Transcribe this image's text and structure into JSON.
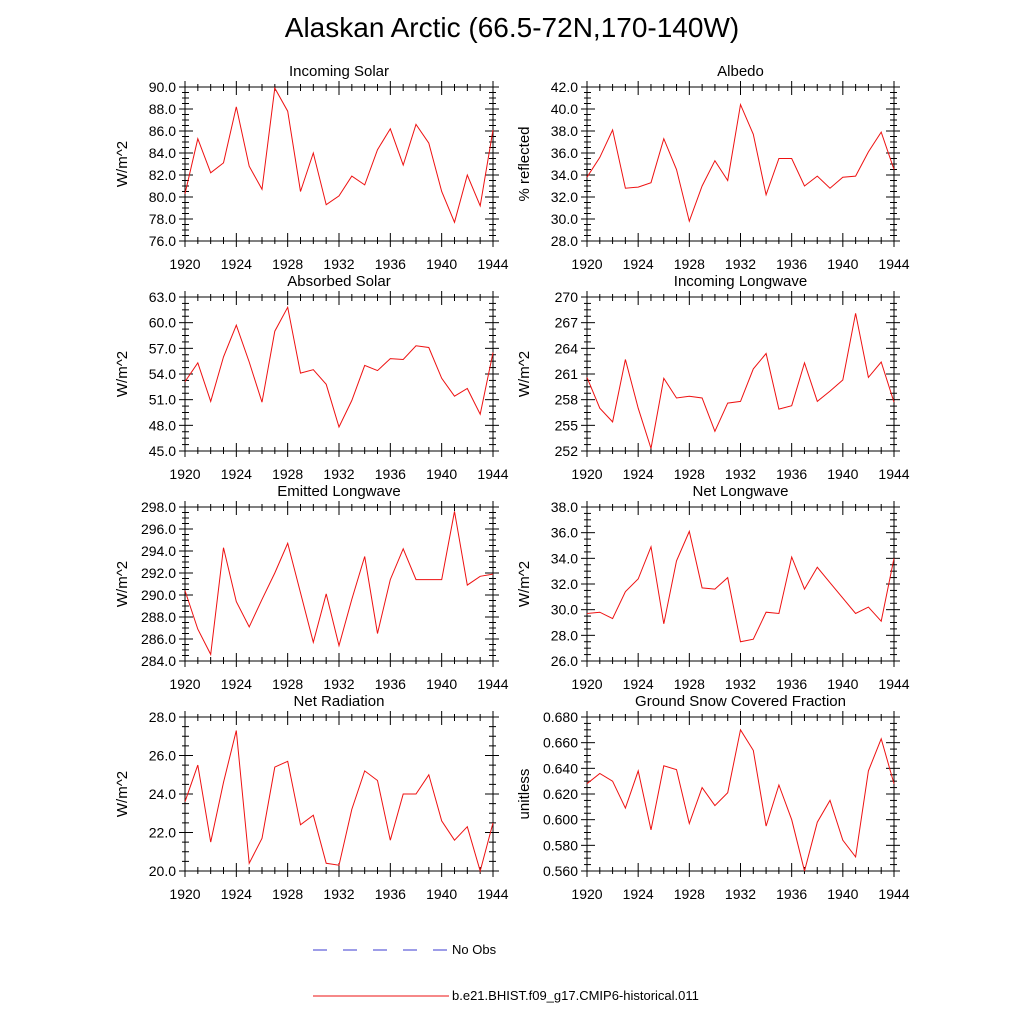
{
  "title": "Alaskan Arctic (66.5-72N,170-140W)",
  "legend": [
    {
      "label": "No Obs",
      "color": "#3b3bd1",
      "style": "dashed"
    },
    {
      "label": "b.e21.BHIST.f09_g17.CMIP6-historical.011",
      "color": "#ee1111",
      "style": "solid"
    }
  ],
  "chart_data": [
    {
      "type": "line",
      "title": "Incoming Solar",
      "ylabel": "W/m^2",
      "xlim": [
        1920,
        1944
      ],
      "ylim": [
        76,
        90
      ],
      "xticks": [
        "1920",
        "1924",
        "1928",
        "1932",
        "1936",
        "1940",
        "1944"
      ],
      "yticks": [
        "76.0",
        "78.0",
        "80.0",
        "82.0",
        "84.0",
        "86.0",
        "88.0",
        "90.0"
      ],
      "x": [
        1920,
        1921,
        1922,
        1923,
        1924,
        1925,
        1926,
        1927,
        1928,
        1929,
        1930,
        1931,
        1932,
        1933,
        1934,
        1935,
        1936,
        1937,
        1938,
        1939,
        1940,
        1941,
        1942,
        1943,
        1944
      ],
      "values": [
        80.3,
        85.3,
        82.2,
        83.1,
        88.2,
        82.8,
        80.7,
        89.9,
        87.8,
        80.5,
        84.0,
        79.3,
        80.1,
        81.9,
        81.1,
        84.3,
        86.2,
        82.9,
        86.6,
        84.9,
        80.5,
        77.7,
        82.0,
        79.2,
        86.1
      ]
    },
    {
      "type": "line",
      "title": "Albedo",
      "ylabel": "% reflected",
      "xlim": [
        1920,
        1944
      ],
      "ylim": [
        28,
        42
      ],
      "xticks": [
        "1920",
        "1924",
        "1928",
        "1932",
        "1936",
        "1940",
        "1944"
      ],
      "yticks": [
        "28.0",
        "30.0",
        "32.0",
        "34.0",
        "36.0",
        "38.0",
        "40.0",
        "42.0"
      ],
      "x": [
        1920,
        1921,
        1922,
        1923,
        1924,
        1925,
        1926,
        1927,
        1928,
        1929,
        1930,
        1931,
        1932,
        1933,
        1934,
        1935,
        1936,
        1937,
        1938,
        1939,
        1940,
        1941,
        1942,
        1943,
        1944
      ],
      "values": [
        33.8,
        35.6,
        38.1,
        32.8,
        32.9,
        33.3,
        37.3,
        34.5,
        29.8,
        33.0,
        35.3,
        33.5,
        40.4,
        37.7,
        32.2,
        35.5,
        35.5,
        33.0,
        33.9,
        32.8,
        33.8,
        33.9,
        36.1,
        37.9,
        34.5
      ]
    },
    {
      "type": "line",
      "title": "Absorbed Solar",
      "ylabel": "W/m^2",
      "xlim": [
        1920,
        1944
      ],
      "ylim": [
        45,
        63
      ],
      "xticks": [
        "1920",
        "1924",
        "1928",
        "1932",
        "1936",
        "1940",
        "1944"
      ],
      "yticks": [
        "45.0",
        "48.0",
        "51.0",
        "54.0",
        "57.0",
        "60.0",
        "63.0"
      ],
      "x": [
        1920,
        1921,
        1922,
        1923,
        1924,
        1925,
        1926,
        1927,
        1928,
        1929,
        1930,
        1931,
        1932,
        1933,
        1934,
        1935,
        1936,
        1937,
        1938,
        1939,
        1940,
        1941,
        1942,
        1943,
        1944
      ],
      "values": [
        53.1,
        55.3,
        50.8,
        56.0,
        59.7,
        55.4,
        50.7,
        59.0,
        61.8,
        54.1,
        54.5,
        52.8,
        47.8,
        50.9,
        55.0,
        54.4,
        55.8,
        55.7,
        57.3,
        57.1,
        53.5,
        51.4,
        52.3,
        49.3,
        56.5
      ]
    },
    {
      "type": "line",
      "title": "Incoming Longwave",
      "ylabel": "W/m^2",
      "xlim": [
        1920,
        1944
      ],
      "ylim": [
        252,
        270
      ],
      "xticks": [
        "1920",
        "1924",
        "1928",
        "1932",
        "1936",
        "1940",
        "1944"
      ],
      "yticks": [
        "252",
        "255",
        "258",
        "261",
        "264",
        "267",
        "270"
      ],
      "x": [
        1920,
        1921,
        1922,
        1923,
        1924,
        1925,
        1926,
        1927,
        1928,
        1929,
        1930,
        1931,
        1932,
        1933,
        1934,
        1935,
        1936,
        1937,
        1938,
        1939,
        1940,
        1941,
        1942,
        1943,
        1944
      ],
      "values": [
        260.6,
        257.0,
        255.4,
        262.7,
        257.0,
        252.3,
        260.5,
        258.2,
        258.4,
        258.2,
        254.3,
        257.6,
        257.8,
        261.6,
        263.4,
        256.9,
        257.3,
        262.3,
        257.8,
        259.0,
        260.3,
        268.1,
        260.6,
        262.4,
        257.7
      ]
    },
    {
      "type": "line",
      "title": "Emitted Longwave",
      "ylabel": "W/m^2",
      "xlim": [
        1920,
        1944
      ],
      "ylim": [
        284,
        298
      ],
      "xticks": [
        "1920",
        "1924",
        "1928",
        "1932",
        "1936",
        "1940",
        "1944"
      ],
      "yticks": [
        "284.0",
        "286.0",
        "288.0",
        "290.0",
        "292.0",
        "294.0",
        "296.0",
        "298.0"
      ],
      "x": [
        1920,
        1921,
        1922,
        1923,
        1924,
        1925,
        1926,
        1927,
        1928,
        1929,
        1930,
        1931,
        1932,
        1933,
        1934,
        1935,
        1936,
        1937,
        1938,
        1939,
        1940,
        1941,
        1942,
        1943,
        1944
      ],
      "values": [
        290.4,
        286.9,
        284.6,
        294.3,
        289.4,
        287.1,
        289.6,
        292.0,
        294.7,
        290.2,
        285.7,
        290.1,
        285.4,
        289.6,
        293.5,
        286.5,
        291.4,
        294.2,
        291.4,
        291.4,
        291.4,
        297.6,
        290.9,
        291.7,
        291.9
      ]
    },
    {
      "type": "line",
      "title": "Net Longwave",
      "ylabel": "W/m^2",
      "xlim": [
        1920,
        1944
      ],
      "ylim": [
        26,
        38
      ],
      "xticks": [
        "1920",
        "1924",
        "1928",
        "1932",
        "1936",
        "1940",
        "1944"
      ],
      "yticks": [
        "26.0",
        "28.0",
        "30.0",
        "32.0",
        "34.0",
        "36.0",
        "38.0"
      ],
      "x": [
        1920,
        1921,
        1922,
        1923,
        1924,
        1925,
        1926,
        1927,
        1928,
        1929,
        1930,
        1931,
        1932,
        1933,
        1934,
        1935,
        1936,
        1937,
        1938,
        1939,
        1940,
        1941,
        1942,
        1943,
        1944
      ],
      "values": [
        29.7,
        29.8,
        29.3,
        31.4,
        32.4,
        34.9,
        28.9,
        33.8,
        36.1,
        31.7,
        31.6,
        32.5,
        27.5,
        27.7,
        29.8,
        29.7,
        34.1,
        31.6,
        33.3,
        32.1,
        30.9,
        29.7,
        30.2,
        29.1,
        34.0
      ]
    },
    {
      "type": "line",
      "title": "Net Radiation",
      "ylabel": "W/m^2",
      "xlim": [
        1920,
        1944
      ],
      "ylim": [
        20,
        28
      ],
      "xticks": [
        "1920",
        "1924",
        "1928",
        "1932",
        "1936",
        "1940",
        "1944"
      ],
      "yticks": [
        "20.0",
        "22.0",
        "24.0",
        "26.0",
        "28.0"
      ],
      "x": [
        1920,
        1921,
        1922,
        1923,
        1924,
        1925,
        1926,
        1927,
        1928,
        1929,
        1930,
        1931,
        1932,
        1933,
        1934,
        1935,
        1936,
        1937,
        1938,
        1939,
        1940,
        1941,
        1942,
        1943,
        1944
      ],
      "values": [
        23.6,
        25.5,
        21.5,
        24.6,
        27.3,
        20.4,
        21.7,
        25.4,
        25.7,
        22.4,
        22.9,
        20.4,
        20.3,
        23.2,
        25.2,
        24.7,
        21.6,
        24.0,
        24.0,
        25.0,
        22.6,
        21.6,
        22.3,
        20.0,
        22.5
      ]
    },
    {
      "type": "line",
      "title": "Ground Snow Covered Fraction",
      "ylabel": "unitless",
      "xlim": [
        1920,
        1944
      ],
      "ylim": [
        0.56,
        0.68
      ],
      "xticks": [
        "1920",
        "1924",
        "1928",
        "1932",
        "1936",
        "1940",
        "1944"
      ],
      "yticks": [
        "0.560",
        "0.580",
        "0.600",
        "0.620",
        "0.640",
        "0.660",
        "0.680"
      ],
      "x": [
        1920,
        1921,
        1922,
        1923,
        1924,
        1925,
        1926,
        1927,
        1928,
        1929,
        1930,
        1931,
        1932,
        1933,
        1934,
        1935,
        1936,
        1937,
        1938,
        1939,
        1940,
        1941,
        1942,
        1943,
        1944
      ],
      "values": [
        0.628,
        0.636,
        0.63,
        0.609,
        0.638,
        0.592,
        0.642,
        0.639,
        0.597,
        0.625,
        0.611,
        0.621,
        0.67,
        0.654,
        0.595,
        0.627,
        0.6,
        0.56,
        0.598,
        0.615,
        0.584,
        0.571,
        0.638,
        0.663,
        0.628
      ]
    }
  ]
}
